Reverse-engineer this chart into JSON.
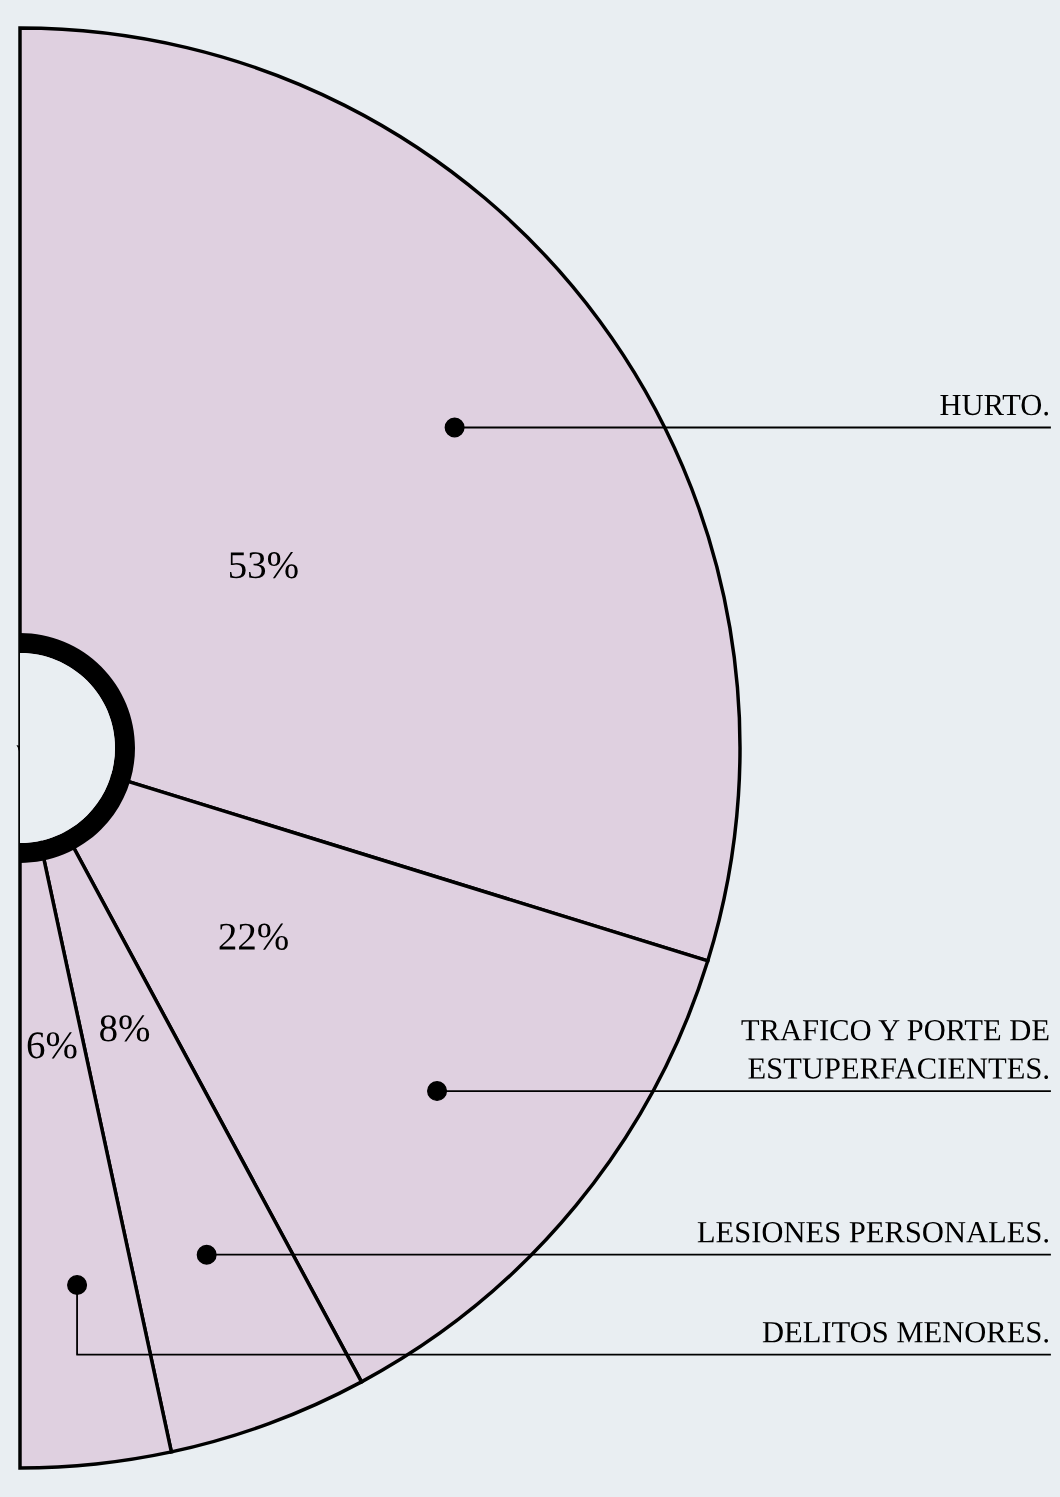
{
  "chart_data": {
    "type": "pie",
    "categories": [
      "HURTO.",
      "TRAFICO Y PORTE DE\nESTUPERFACIENTES.",
      "LESIONES PERSONALES.",
      "DELITOS MENORES."
    ],
    "values": [
      53,
      22,
      8,
      6
    ],
    "colors": [
      "#dfd0e0",
      "#dfd0e0",
      "#dfd0e0",
      "#dfd0e0"
    ],
    "value_labels": [
      "53%",
      "22%",
      "8%",
      "6%"
    ],
    "legend": false
  }
}
